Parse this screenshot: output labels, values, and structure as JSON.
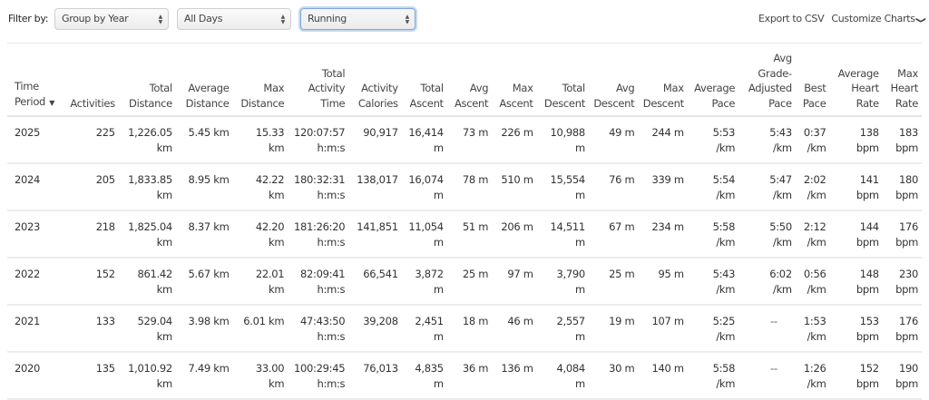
{
  "toolbar": {
    "filter_label": "Filter by:",
    "group_select": {
      "value": "Group by Year"
    },
    "days_select": {
      "value": "All Days"
    },
    "activity_select": {
      "value": "Running"
    },
    "export_label": "Export to CSV",
    "customize_label": "Customize Charts",
    "chevron": "❯"
  },
  "table": {
    "sort_indicator": "▼",
    "columns": [
      {
        "key": "period",
        "lines": [
          "Time",
          "Period"
        ]
      },
      {
        "key": "activities",
        "lines": [
          "Activities"
        ]
      },
      {
        "key": "total_distance",
        "lines": [
          "Total",
          "Distance"
        ]
      },
      {
        "key": "avg_distance",
        "lines": [
          "Average",
          "Distance"
        ]
      },
      {
        "key": "max_distance",
        "lines": [
          "Max",
          "Distance"
        ]
      },
      {
        "key": "total_time",
        "lines": [
          "Total",
          "Activity",
          "Time"
        ]
      },
      {
        "key": "calories",
        "lines": [
          "Activity",
          "Calories"
        ]
      },
      {
        "key": "total_ascent",
        "lines": [
          "Total",
          "Ascent"
        ]
      },
      {
        "key": "avg_ascent",
        "lines": [
          "Avg",
          "Ascent"
        ]
      },
      {
        "key": "max_ascent",
        "lines": [
          "Max",
          "Ascent"
        ]
      },
      {
        "key": "total_descent",
        "lines": [
          "Total",
          "Descent"
        ]
      },
      {
        "key": "avg_descent",
        "lines": [
          "Avg",
          "Descent"
        ]
      },
      {
        "key": "max_descent",
        "lines": [
          "Max",
          "Descent"
        ]
      },
      {
        "key": "avg_pace",
        "lines": [
          "Average",
          "Pace"
        ]
      },
      {
        "key": "gap",
        "lines": [
          "Avg",
          "Grade-",
          "Adjusted",
          "Pace"
        ]
      },
      {
        "key": "best_pace",
        "lines": [
          "Best",
          "Pace"
        ]
      },
      {
        "key": "avg_hr",
        "lines": [
          "Average",
          "Heart",
          "Rate"
        ]
      },
      {
        "key": "max_hr",
        "lines": [
          "Max",
          "Heart",
          "Rate"
        ]
      }
    ],
    "rows": [
      {
        "period": "2025",
        "activities": "225",
        "total_distance": [
          "1,226.05",
          "km"
        ],
        "avg_distance": [
          "5.45 km"
        ],
        "max_distance": [
          "15.33",
          "km"
        ],
        "total_time": [
          "120:07:57",
          "h:m:s"
        ],
        "calories": [
          "90,917"
        ],
        "total_ascent": [
          "16,414",
          "m"
        ],
        "avg_ascent": [
          "73 m"
        ],
        "max_ascent": [
          "226 m"
        ],
        "total_descent": [
          "10,988",
          "m"
        ],
        "avg_descent": [
          "49 m"
        ],
        "max_descent": [
          "244 m"
        ],
        "avg_pace": [
          "5:53",
          "/km"
        ],
        "gap": [
          "5:43",
          "/km"
        ],
        "best_pace": [
          "0:37",
          "/km"
        ],
        "avg_hr": [
          "138",
          "bpm"
        ],
        "max_hr": [
          "183",
          "bpm"
        ]
      },
      {
        "period": "2024",
        "activities": "205",
        "total_distance": [
          "1,833.85",
          "km"
        ],
        "avg_distance": [
          "8.95 km"
        ],
        "max_distance": [
          "42.22",
          "km"
        ],
        "total_time": [
          "180:32:31",
          "h:m:s"
        ],
        "calories": [
          "138,017"
        ],
        "total_ascent": [
          "16,074",
          "m"
        ],
        "avg_ascent": [
          "78 m"
        ],
        "max_ascent": [
          "510 m"
        ],
        "total_descent": [
          "15,554",
          "m"
        ],
        "avg_descent": [
          "76 m"
        ],
        "max_descent": [
          "339 m"
        ],
        "avg_pace": [
          "5:54",
          "/km"
        ],
        "gap": [
          "5:47",
          "/km"
        ],
        "best_pace": [
          "2:02",
          "/km"
        ],
        "avg_hr": [
          "141",
          "bpm"
        ],
        "max_hr": [
          "180",
          "bpm"
        ]
      },
      {
        "period": "2023",
        "activities": "218",
        "total_distance": [
          "1,825.04",
          "km"
        ],
        "avg_distance": [
          "8.37 km"
        ],
        "max_distance": [
          "42.20",
          "km"
        ],
        "total_time": [
          "181:26:20",
          "h:m:s"
        ],
        "calories": [
          "141,851"
        ],
        "total_ascent": [
          "11,054",
          "m"
        ],
        "avg_ascent": [
          "51 m"
        ],
        "max_ascent": [
          "206 m"
        ],
        "total_descent": [
          "14,511",
          "m"
        ],
        "avg_descent": [
          "67 m"
        ],
        "max_descent": [
          "234 m"
        ],
        "avg_pace": [
          "5:58",
          "/km"
        ],
        "gap": [
          "5:50",
          "/km"
        ],
        "best_pace": [
          "2:12",
          "/km"
        ],
        "avg_hr": [
          "144",
          "bpm"
        ],
        "max_hr": [
          "176",
          "bpm"
        ]
      },
      {
        "period": "2022",
        "activities": "152",
        "total_distance": [
          "861.42",
          "km"
        ],
        "avg_distance": [
          "5.67 km"
        ],
        "max_distance": [
          "22.01",
          "km"
        ],
        "total_time": [
          "82:09:41",
          "h:m:s"
        ],
        "calories": [
          "66,541"
        ],
        "total_ascent": [
          "3,872",
          "m"
        ],
        "avg_ascent": [
          "25 m"
        ],
        "max_ascent": [
          "97 m"
        ],
        "total_descent": [
          "3,790",
          "m"
        ],
        "avg_descent": [
          "25 m"
        ],
        "max_descent": [
          "95 m"
        ],
        "avg_pace": [
          "5:43",
          "/km"
        ],
        "gap": [
          "6:02",
          "/km"
        ],
        "best_pace": [
          "0:56",
          "/km"
        ],
        "avg_hr": [
          "148",
          "bpm"
        ],
        "max_hr": [
          "230",
          "bpm"
        ]
      },
      {
        "period": "2021",
        "activities": "133",
        "total_distance": [
          "529.04",
          "km"
        ],
        "avg_distance": [
          "3.98 km"
        ],
        "max_distance": [
          "6.01 km"
        ],
        "total_time": [
          "47:43:50",
          "h:m:s"
        ],
        "calories": [
          "39,208"
        ],
        "total_ascent": [
          "2,451",
          "m"
        ],
        "avg_ascent": [
          "18 m"
        ],
        "max_ascent": [
          "46 m"
        ],
        "total_descent": [
          "2,557",
          "m"
        ],
        "avg_descent": [
          "19 m"
        ],
        "max_descent": [
          "107 m"
        ],
        "avg_pace": [
          "5:25",
          "/km"
        ],
        "gap": [
          "--"
        ],
        "best_pace": [
          "1:53",
          "/km"
        ],
        "avg_hr": [
          "153",
          "bpm"
        ],
        "max_hr": [
          "176",
          "bpm"
        ]
      },
      {
        "period": "2020",
        "activities": "135",
        "total_distance": [
          "1,010.92",
          "km"
        ],
        "avg_distance": [
          "7.49 km"
        ],
        "max_distance": [
          "33.00",
          "km"
        ],
        "total_time": [
          "100:29:45",
          "h:m:s"
        ],
        "calories": [
          "76,013"
        ],
        "total_ascent": [
          "4,835",
          "m"
        ],
        "avg_ascent": [
          "36 m"
        ],
        "max_ascent": [
          "136 m"
        ],
        "total_descent": [
          "4,084",
          "m"
        ],
        "avg_descent": [
          "30 m"
        ],
        "max_descent": [
          "140 m"
        ],
        "avg_pace": [
          "5:58",
          "/km"
        ],
        "gap": [
          "--"
        ],
        "best_pace": [
          "1:26",
          "/km"
        ],
        "avg_hr": [
          "152",
          "bpm"
        ],
        "max_hr": [
          "190",
          "bpm"
        ]
      }
    ]
  }
}
